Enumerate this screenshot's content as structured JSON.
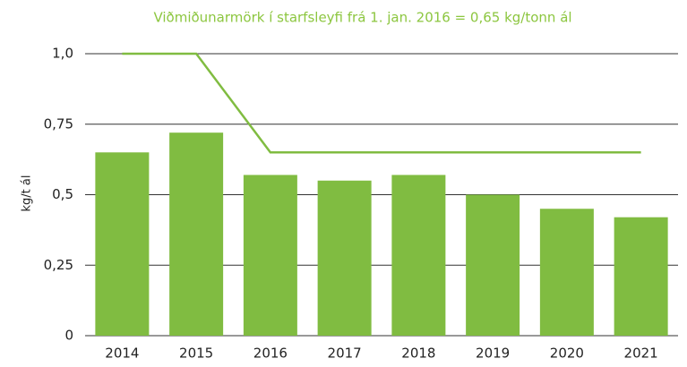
{
  "chart_data": {
    "type": "bar",
    "title": "Viðmiðunarmörk í starfsleyfi frá 1. jan. 2016 = 0,65 kg/tonn ál",
    "y_label": "kg/t ál",
    "categories": [
      "2014",
      "2015",
      "2016",
      "2017",
      "2018",
      "2019",
      "2020",
      "2021"
    ],
    "series": [
      {
        "type": "bar",
        "color": "#80bc41",
        "values": [
          0.65,
          0.72,
          0.57,
          0.55,
          0.57,
          0.5,
          0.45,
          0.42
        ]
      },
      {
        "type": "line",
        "color": "#80bc41",
        "values": [
          1.0,
          1.0,
          0.65,
          0.65,
          0.65,
          0.65,
          0.65,
          0.65
        ]
      }
    ],
    "ylim": [
      0,
      1.0
    ],
    "yticks": [
      0,
      {
        "value": 0.25,
        "label": "0,25"
      },
      {
        "value": 0.5,
        "label": "0,5"
      },
      {
        "value": 0.75,
        "label": "0,75"
      },
      {
        "value": 1.0,
        "label": "1,0"
      }
    ],
    "grid": true
  }
}
